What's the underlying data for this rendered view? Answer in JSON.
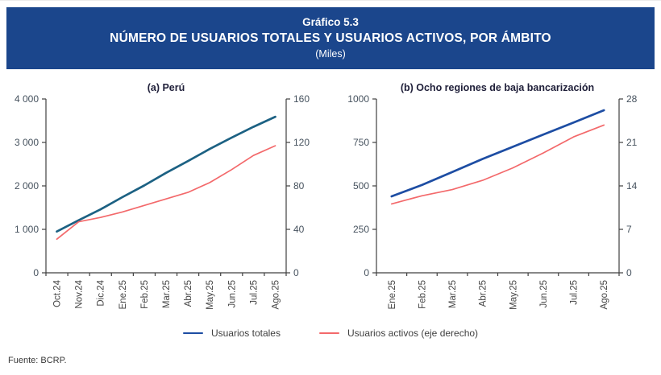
{
  "header": {
    "kicker": "Gráfico 5.3",
    "title": "NÚMERO DE USUARIOS TOTALES Y USUARIOS ACTIVOS, POR ÁMBITO",
    "subtitle": "(Miles)",
    "background": "#1B468C",
    "text_color": "#FFFFFF"
  },
  "legend": [
    {
      "label": "Usuarios totales",
      "color": "#1D4DA3"
    },
    {
      "label": "Usuarios activos (eje derecho)",
      "color": "#F3696B"
    }
  ],
  "footer": {
    "source": "Fuente: BCRP."
  },
  "style": {
    "axis_color": "#404040",
    "y_tick_label_color": "#46525e",
    "x_tick_label_color": "#454545",
    "chart_title_color": "#20203a"
  },
  "chart_data": [
    {
      "type": "line",
      "title": "(a) Perú",
      "categories": [
        "Oct.24",
        "Nov.24",
        "Dic.24",
        "Ene.25",
        "Feb.25",
        "Mar.25",
        "Abr.25",
        "May.25",
        "Jun.25",
        "Jul.25",
        "Ago.25"
      ],
      "left_axis": {
        "min": 0,
        "max": 4000,
        "ticks": [
          0,
          1000,
          2000,
          3000,
          4000
        ],
        "tick_labels": [
          "0",
          "1 000",
          "2 000",
          "3 000",
          "4 000"
        ]
      },
      "right_axis": {
        "min": 0,
        "max": 160,
        "ticks": [
          0,
          40,
          80,
          120,
          160
        ],
        "tick_labels": [
          "0",
          "40",
          "80",
          "120",
          "160"
        ]
      },
      "grid": false,
      "series": [
        {
          "name": "Usuarios totales",
          "axis": "left",
          "color": "#1C6183",
          "stroke_width": 2.7,
          "values": [
            950,
            1210,
            1460,
            1740,
            2010,
            2300,
            2570,
            2850,
            3110,
            3360,
            3590
          ]
        },
        {
          "name": "Usuarios activos (eje derecho)",
          "axis": "right",
          "color": "#F3696B",
          "stroke_width": 1.7,
          "values": [
            31,
            47,
            51,
            56,
            62,
            68,
            74,
            83,
            95,
            108,
            117
          ]
        }
      ]
    },
    {
      "type": "line",
      "title": "(b) Ocho regiones de baja bancarización",
      "categories": [
        "Ene.25",
        "Feb.25",
        "Mar.25",
        "Abr.25",
        "May.25",
        "Jun.25",
        "Jul.25",
        "Ago.25"
      ],
      "left_axis": {
        "min": 0,
        "max": 1000,
        "ticks": [
          0,
          250,
          500,
          750,
          1000
        ],
        "tick_labels": [
          "0",
          "250",
          "500",
          "750",
          "1000"
        ]
      },
      "right_axis": {
        "min": 0,
        "max": 28,
        "ticks": [
          0,
          7,
          14,
          21,
          28
        ],
        "tick_labels": [
          "0",
          "7",
          "14",
          "21",
          "28"
        ]
      },
      "grid": false,
      "series": [
        {
          "name": "Usuarios totales",
          "axis": "left",
          "color": "#1D4DA3",
          "stroke_width": 2.7,
          "values": [
            440,
            505,
            580,
            655,
            725,
            795,
            865,
            935
          ]
        },
        {
          "name": "Usuarios activos (eje derecho)",
          "axis": "right",
          "color": "#F3696B",
          "stroke_width": 1.7,
          "values": [
            11.1,
            12.4,
            13.4,
            14.9,
            16.9,
            19.3,
            21.9,
            23.8
          ]
        }
      ]
    }
  ]
}
